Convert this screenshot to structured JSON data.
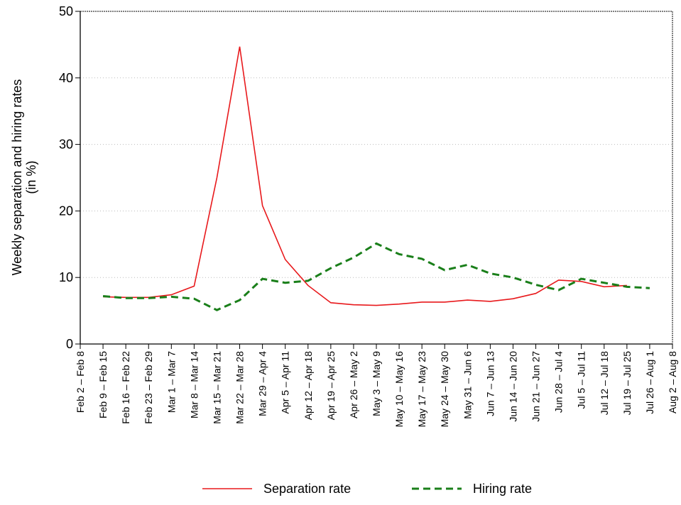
{
  "chart_data": {
    "type": "line",
    "y_label": [
      "Weekly separation and hiring rates",
      "(in %)"
    ],
    "categories": [
      "Feb 2 – Feb 8",
      "Feb 9 – Feb 15",
      "Feb 16 – Feb 22",
      "Feb 23 – Feb 29",
      "Mar 1 – Mar 7",
      "Mar 8 – Mar 14",
      "Mar 15 – Mar 21",
      "Mar 22 – Mar 28",
      "Mar 29 – Apr 4",
      "Apr 5 – Apr 11",
      "Apr 12 – Apr 18",
      "Apr 19 – Apr 25",
      "Apr 26 – May 2",
      "May 3 – May 9",
      "May 10 – May 16",
      "May 17 – May 23",
      "May 24 – May 30",
      "May 31 – Jun 6",
      "Jun 7 – Jun 13",
      "Jun 14 – Jun 20",
      "Jun 21 – Jun 27",
      "Jun 28 – Jul 4",
      "Jul 5 – Jul 11",
      "Jul 12 – Jul 18",
      "Jul 19 – Jul 25",
      "Jul 26 – Aug 1",
      "Aug 2 – Aug 8"
    ],
    "series": [
      {
        "name": "Separation rate",
        "color": "#e8191c",
        "dashed": false,
        "values": [
          null,
          7.1,
          7.0,
          7.0,
          7.4,
          8.7,
          25,
          44.7,
          20.8,
          12.7,
          8.8,
          6.2,
          5.9,
          5.8,
          6.0,
          6.3,
          6.3,
          6.6,
          6.4,
          6.8,
          7.6,
          9.6,
          9.4,
          8.6,
          8.8,
          null,
          null
        ]
      },
      {
        "name": "Hiring rate",
        "color": "#1a7f1a",
        "dashed": true,
        "values": [
          null,
          7.2,
          6.9,
          6.9,
          7.1,
          6.8,
          5.1,
          6.6,
          9.8,
          9.2,
          9.5,
          11.4,
          13.0,
          15.1,
          13.5,
          12.8,
          11.1,
          11.9,
          10.6,
          10.0,
          8.9,
          8.1,
          9.8,
          9.2,
          8.6,
          8.4,
          null
        ]
      }
    ],
    "ylim": [
      0,
      50
    ],
    "yticks": [
      0,
      10,
      20,
      30,
      40,
      50
    ],
    "grid": true,
    "legend": "bottom"
  }
}
